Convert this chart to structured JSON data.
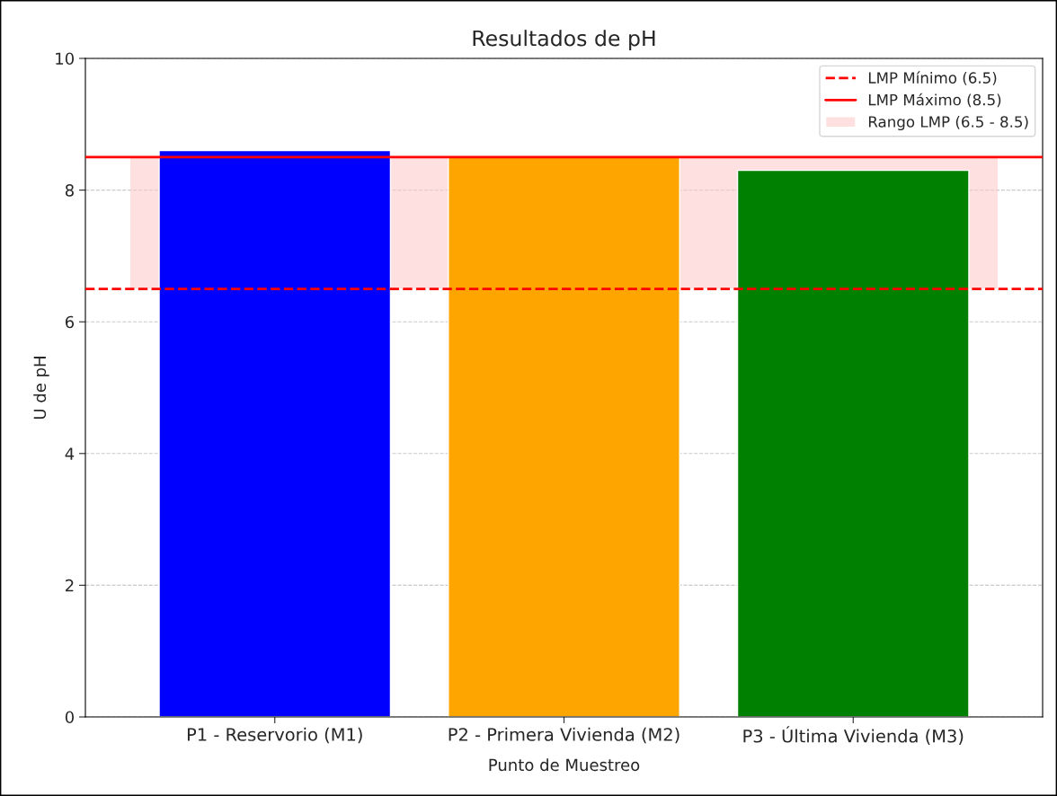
{
  "chart_data": {
    "type": "bar",
    "title": "Resultados de pH",
    "xlabel": "Punto de Muestreo",
    "ylabel": "U de pH",
    "categories": [
      "P1 - Reservorio (M1)",
      "P2 - Primera Vivienda (M2)",
      "P3 - Última Vivienda (M3)"
    ],
    "values": [
      8.6,
      8.5,
      8.3
    ],
    "colors": [
      "#0000ff",
      "#ffa500",
      "#008000"
    ],
    "ylim": [
      0,
      10
    ],
    "yticks": [
      0,
      2,
      4,
      6,
      8,
      10
    ],
    "grid": "y",
    "legend": "top right",
    "ref_lines": [
      {
        "axis": "y",
        "value": 6.5,
        "label": "LMP Mínimo (6.5)",
        "color": "#ff0000",
        "line_style": "dashed"
      },
      {
        "axis": "y",
        "value": 8.5,
        "label": "LMP Máximo (8.5)",
        "color": "#ff0000",
        "line_style": "solid"
      }
    ],
    "bands": [
      {
        "axis": "y",
        "from": 6.5,
        "to": 8.5,
        "label": "Rango LMP (6.5 - 8.5)",
        "color": "#ffcccc"
      }
    ]
  }
}
